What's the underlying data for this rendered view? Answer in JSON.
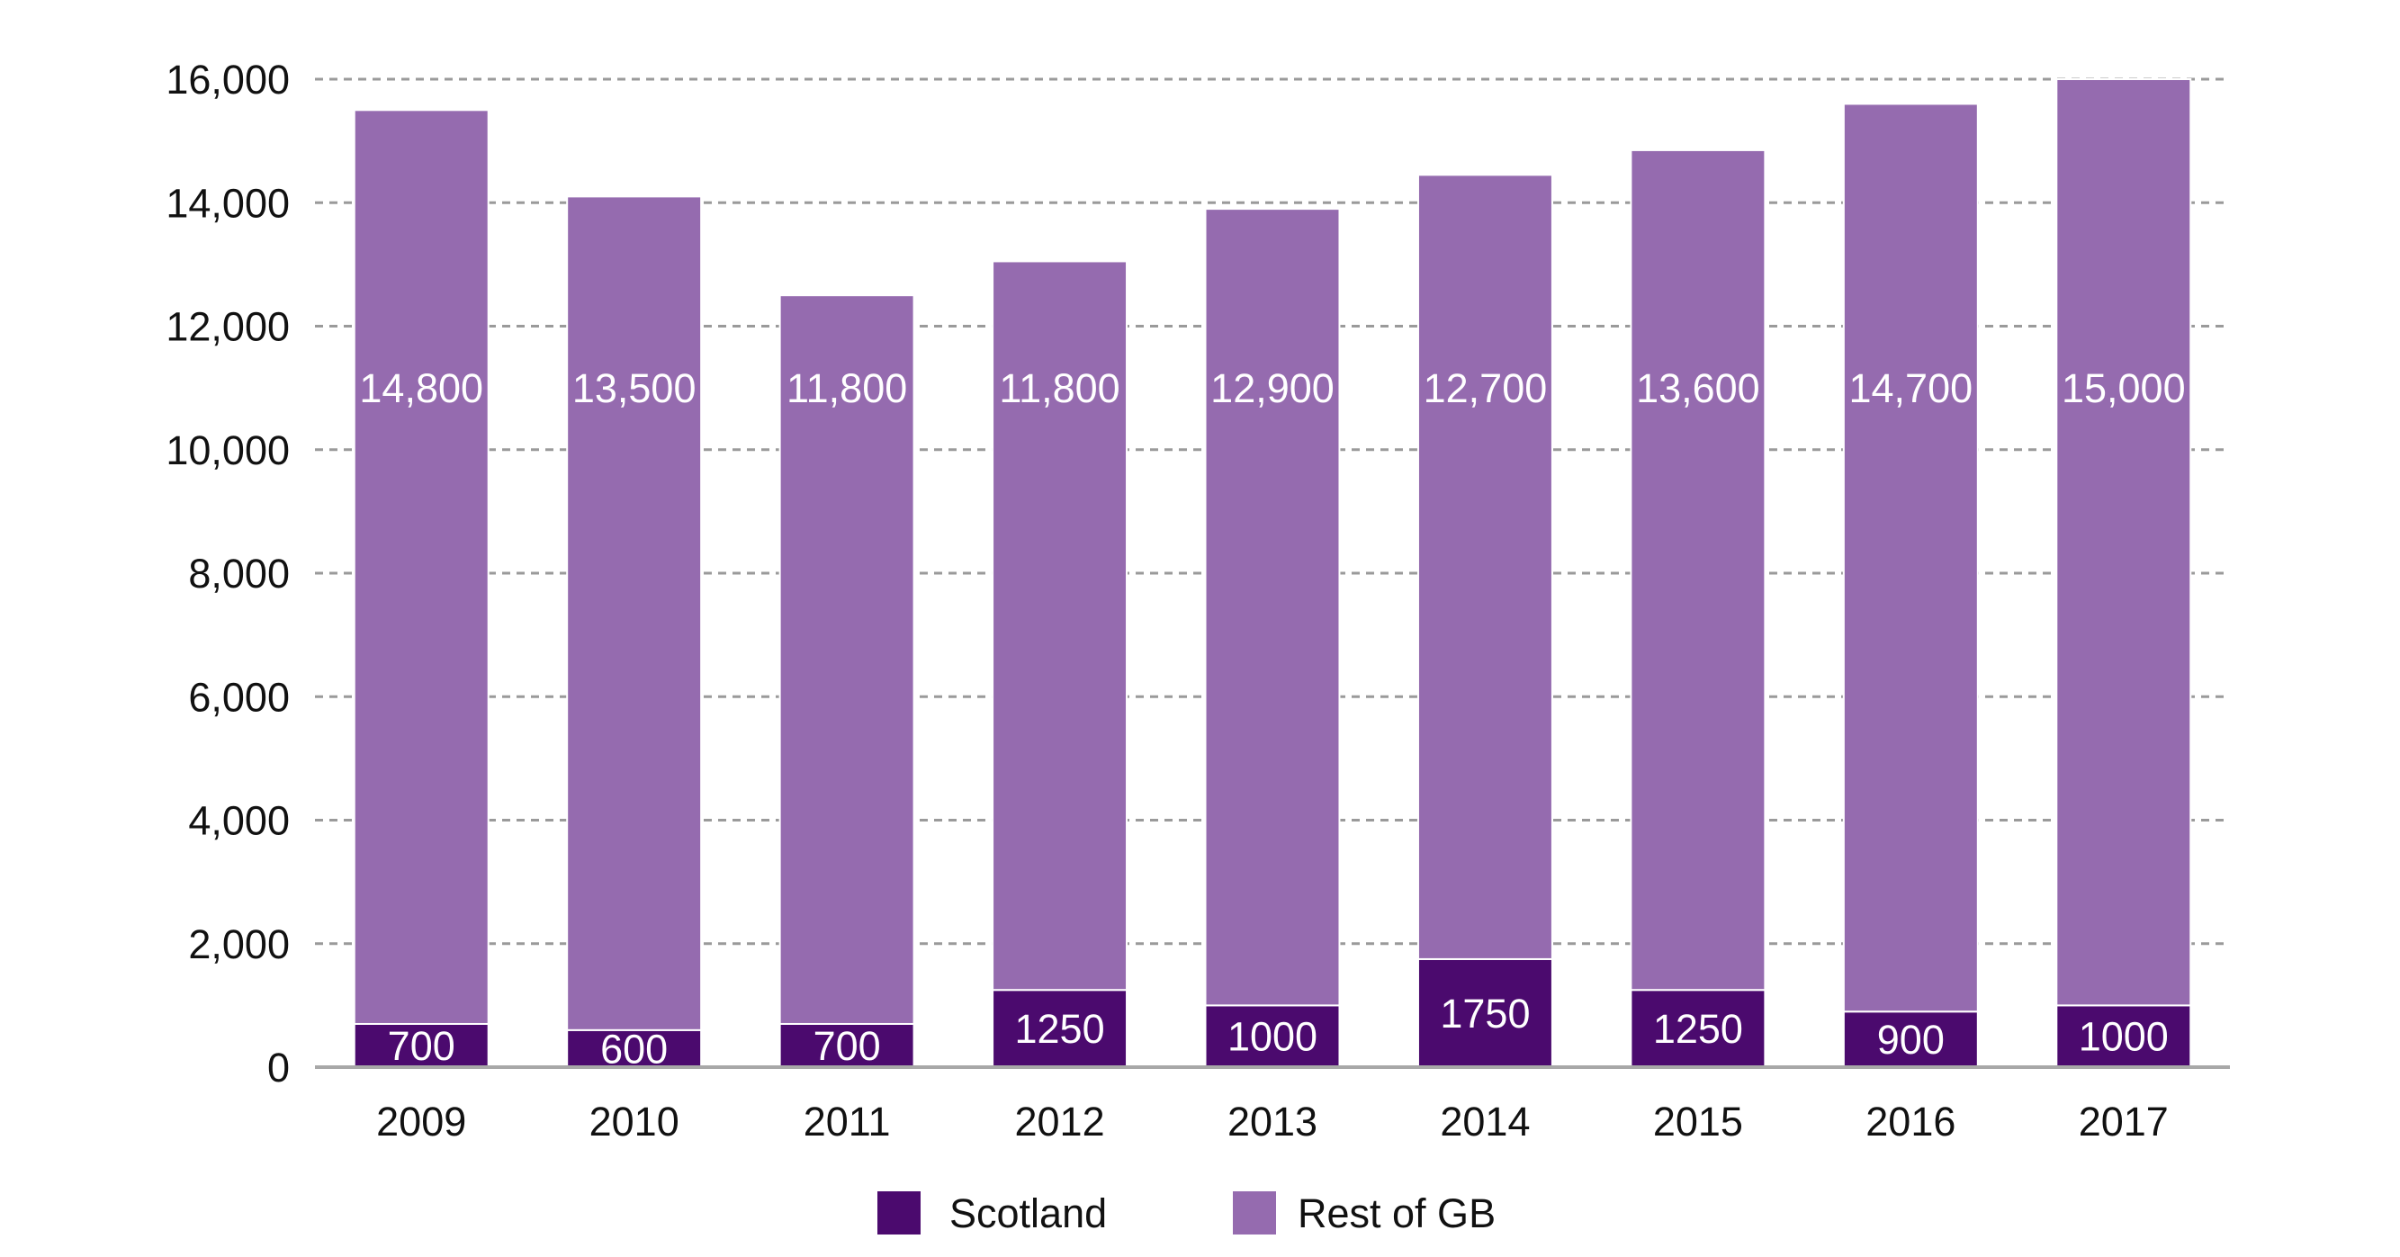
{
  "chart_data": {
    "type": "bar",
    "stacked": true,
    "title": "",
    "xlabel": "",
    "ylabel": "",
    "ylim": [
      0,
      16000
    ],
    "y_ticks": [
      0,
      2000,
      4000,
      6000,
      8000,
      10000,
      12000,
      14000,
      16000
    ],
    "y_tick_labels": [
      "0",
      "2,000",
      "4,000",
      "6,000",
      "8,000",
      "10,000",
      "12,000",
      "14,000",
      "16,000"
    ],
    "grid": true,
    "legend_position": "bottom",
    "categories": [
      "2009",
      "2010",
      "2011",
      "2012",
      "2013",
      "2014",
      "2015",
      "2016",
      "2017"
    ],
    "series": [
      {
        "name": "Scotland",
        "color": "#4b0a6e",
        "values": [
          700,
          600,
          700,
          1250,
          1000,
          1750,
          1250,
          900,
          1000
        ],
        "labels": [
          "700",
          "600",
          "700",
          "1250",
          "1000",
          "1750",
          "1250",
          "900",
          "1000"
        ]
      },
      {
        "name": "Rest of GB",
        "color": "#956baf",
        "values": [
          14800,
          13500,
          11800,
          11800,
          12900,
          12700,
          13600,
          14700,
          15000
        ],
        "labels": [
          "14,800",
          "13,500",
          "11,800",
          "11,800",
          "12,900",
          "12,700",
          "13,600",
          "14,700",
          "15,000"
        ]
      }
    ]
  }
}
